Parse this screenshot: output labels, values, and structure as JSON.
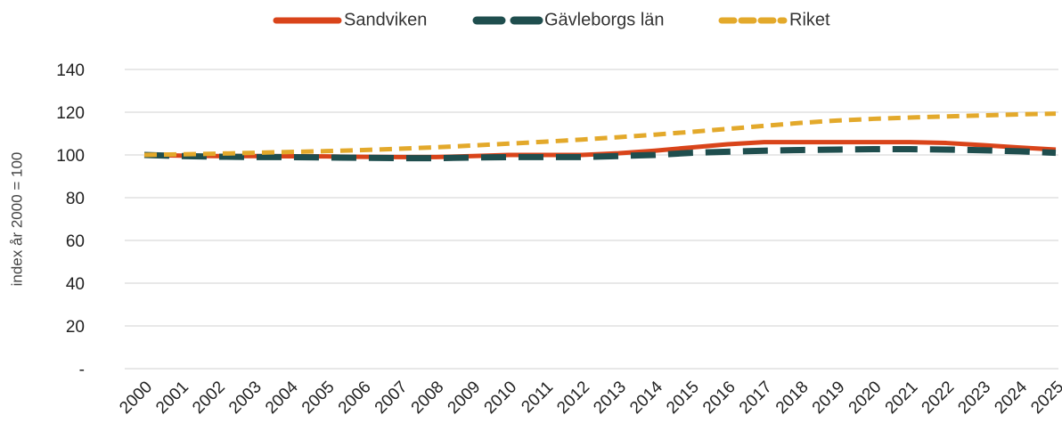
{
  "chart_data": {
    "type": "line",
    "y_label": "index år 2000 = 100",
    "categories": [
      "2000",
      "2001",
      "2002",
      "2003",
      "2004",
      "2005",
      "2006",
      "2007",
      "2008",
      "2009",
      "2010",
      "2011",
      "2012",
      "2013",
      "2014",
      "2015",
      "2016",
      "2017",
      "2018",
      "2019",
      "2020",
      "2021",
      "2022",
      "2023",
      "2024",
      "2025"
    ],
    "series": [
      {
        "name": "Sandviken",
        "color": "#d9441a",
        "dash": "solid",
        "values": [
          100,
          99.7,
          99.5,
          99.5,
          99.4,
          99.3,
          99.1,
          99,
          99,
          99.5,
          100,
          100,
          100,
          100.8,
          102,
          103.5,
          105,
          106,
          106,
          106,
          106,
          106,
          105.6,
          104.6,
          103.5,
          102.5
        ]
      },
      {
        "name": "Gävleborgs län",
        "color": "#1f4e4e",
        "dash": "long",
        "values": [
          100,
          99.5,
          99.2,
          99,
          99,
          98.8,
          98.7,
          98.5,
          98.5,
          98.8,
          99,
          99,
          99,
          99.5,
          100,
          101,
          101.5,
          102,
          102.3,
          102.5,
          102.7,
          102.7,
          102.5,
          102.2,
          101.7,
          101
        ]
      },
      {
        "name": "Riket",
        "color": "#e3a92b",
        "dash": "short",
        "values": [
          100,
          100.3,
          100.6,
          101,
          101.4,
          101.8,
          102.3,
          102.9,
          103.6,
          104.4,
          105.3,
          106.2,
          107.2,
          108.3,
          109.5,
          110.8,
          112.2,
          113.6,
          115,
          116.1,
          116.9,
          117.5,
          118,
          118.5,
          119,
          119.3
        ]
      }
    ],
    "ylim": [
      0,
      140
    ],
    "yticks": [
      {
        "value": 0,
        "label": "-"
      },
      20,
      40,
      60,
      80,
      100,
      120,
      140
    ],
    "grid": true,
    "legend": "top"
  }
}
